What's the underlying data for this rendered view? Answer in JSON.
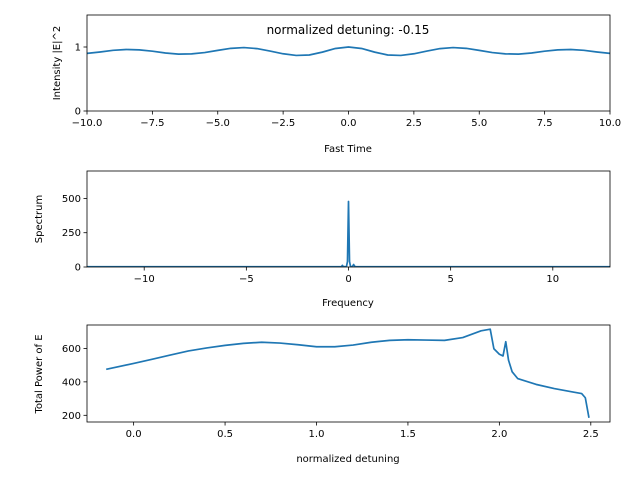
{
  "chart_data": [
    {
      "type": "line",
      "xlabel": "Fast Time",
      "ylabel": "Intensity |E|^2",
      "annotation": "normalized detuning: -0.15",
      "xlim": [
        -10,
        10
      ],
      "ylim": [
        0,
        1.5
      ],
      "xticks": [
        -10,
        -7.5,
        -5,
        -2.5,
        0,
        2.5,
        5,
        7.5,
        10
      ],
      "xtick_labels": [
        "−10.0",
        "−7.5",
        "−5.0",
        "−2.5",
        "0.0",
        "2.5",
        "5.0",
        "7.5",
        "10.0"
      ],
      "yticks": [
        0,
        1
      ],
      "ytick_labels": [
        "0",
        "1"
      ],
      "color": "#1f77b4",
      "series": [
        {
          "x": [
            -10,
            -9.5,
            -9,
            -8.5,
            -8,
            -7.5,
            -7,
            -6.5,
            -6,
            -5.5,
            -5,
            -4.5,
            -4,
            -3.5,
            -3,
            -2.5,
            -2,
            -1.5,
            -1,
            -0.5,
            0,
            0.5,
            1,
            1.5,
            2,
            2.5,
            3,
            3.5,
            4,
            4.5,
            5,
            5.5,
            6,
            6.5,
            7,
            7.5,
            8,
            8.5,
            9,
            9.5,
            10
          ],
          "values": [
            0.9,
            0.922,
            0.948,
            0.961,
            0.955,
            0.935,
            0.906,
            0.889,
            0.893,
            0.913,
            0.947,
            0.979,
            0.991,
            0.975,
            0.936,
            0.894,
            0.868,
            0.875,
            0.92,
            0.977,
            1.0,
            0.977,
            0.92,
            0.875,
            0.868,
            0.894,
            0.936,
            0.975,
            0.991,
            0.979,
            0.947,
            0.913,
            0.893,
            0.889,
            0.906,
            0.935,
            0.955,
            0.961,
            0.948,
            0.922,
            0.9
          ]
        }
      ]
    },
    {
      "type": "line",
      "xlabel": "Frequency",
      "ylabel": "Spectrum",
      "xlim": [
        -12.8,
        12.8
      ],
      "ylim": [
        0,
        700
      ],
      "xticks": [
        -10,
        -5,
        0,
        5,
        10
      ],
      "xtick_labels": [
        "−10",
        "−5",
        "0",
        "5",
        "10"
      ],
      "yticks": [
        0,
        250,
        500
      ],
      "ytick_labels": [
        "0",
        "250",
        "500"
      ],
      "color": "#1f77b4",
      "series": [
        {
          "x": [
            -12.8,
            -0.35,
            -0.3,
            -0.25,
            -0.2,
            -0.15,
            -0.1,
            -0.05,
            0.0,
            0.05,
            0.1,
            0.15,
            0.2,
            0.25,
            0.3,
            0.35,
            12.8
          ],
          "values": [
            2,
            2,
            12,
            2,
            3,
            2,
            3,
            40,
            478,
            40,
            3,
            2,
            6,
            18,
            6,
            2,
            2
          ]
        }
      ]
    },
    {
      "type": "line",
      "xlabel": "normalized detuning",
      "ylabel": "Total Power of E",
      "xlim": [
        -0.255,
        2.605
      ],
      "ylim": [
        160,
        740
      ],
      "xticks": [
        0,
        0.5,
        1,
        1.5,
        2,
        2.5
      ],
      "xtick_labels": [
        "0.0",
        "0.5",
        "1.0",
        "1.5",
        "2.0",
        "2.5"
      ],
      "yticks": [
        200,
        400,
        600
      ],
      "ytick_labels": [
        "200",
        "400",
        "600"
      ],
      "color": "#1f77b4",
      "series": [
        {
          "x": [
            -0.15,
            0.0,
            0.1,
            0.2,
            0.3,
            0.4,
            0.5,
            0.6,
            0.7,
            0.8,
            0.9,
            1.0,
            1.1,
            1.2,
            1.3,
            1.4,
            1.5,
            1.6,
            1.7,
            1.8,
            1.9,
            1.95,
            1.97,
            2.0,
            2.02,
            2.035,
            2.05,
            2.07,
            2.1,
            2.2,
            2.3,
            2.4,
            2.45,
            2.47,
            2.49
          ],
          "values": [
            475,
            510,
            535,
            560,
            585,
            603,
            618,
            630,
            637,
            632,
            622,
            610,
            610,
            620,
            637,
            648,
            652,
            650,
            648,
            665,
            705,
            715,
            598,
            565,
            555,
            640,
            530,
            460,
            420,
            385,
            360,
            340,
            330,
            305,
            185
          ]
        }
      ]
    }
  ]
}
